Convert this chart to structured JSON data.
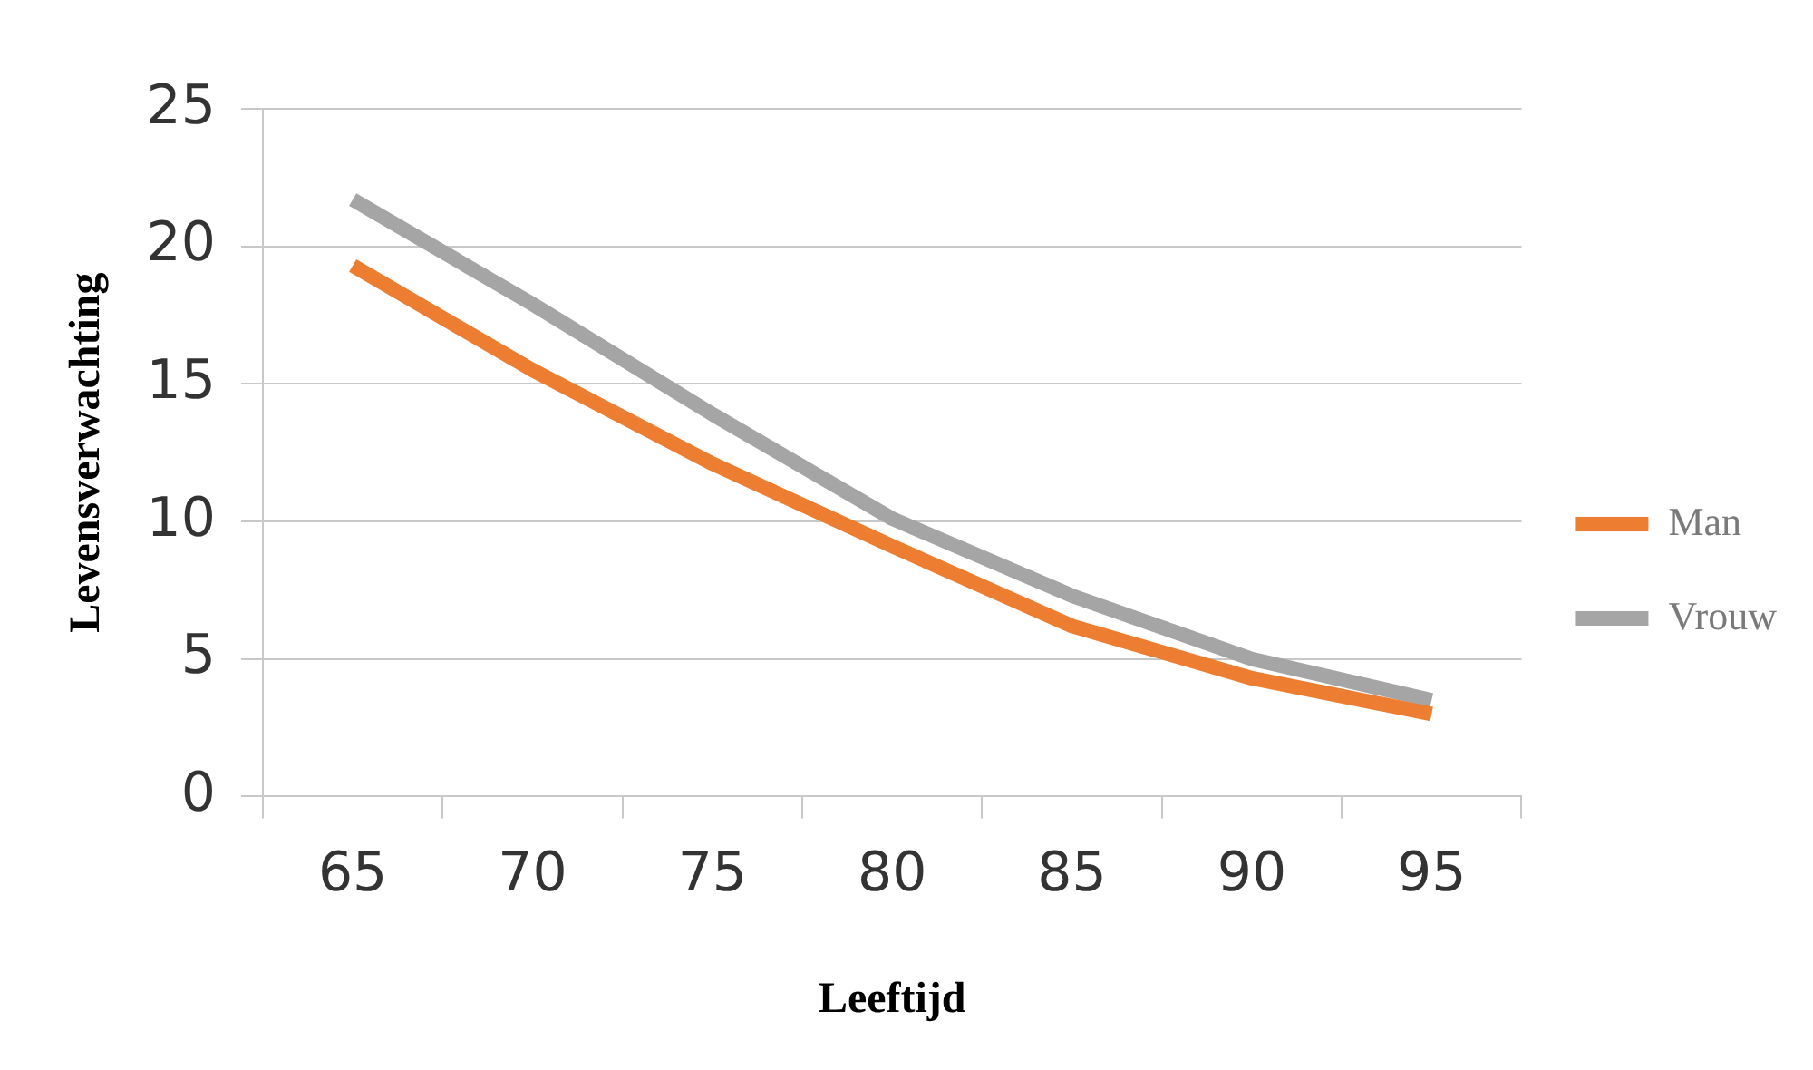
{
  "chart_data": {
    "type": "line",
    "xlabel": "Leeftijd",
    "ylabel": "Levensverwachting",
    "categories": [
      "65",
      "70",
      "75",
      "80",
      "85",
      "90",
      "95"
    ],
    "series": [
      {
        "name": "Man",
        "color": "#ed7d31",
        "values": [
          19.3,
          15.5,
          12.1,
          9.1,
          6.2,
          4.3,
          3.0
        ]
      },
      {
        "name": "Vrouw",
        "color": "#a5a5a5",
        "values": [
          21.7,
          17.9,
          13.9,
          10.1,
          7.3,
          5.0,
          3.5
        ]
      }
    ],
    "ylim": [
      0,
      25
    ],
    "yticks": [
      0,
      5,
      10,
      15,
      20,
      25
    ],
    "grid": "y",
    "legend": "right",
    "marker": "none",
    "line_style": "solid"
  }
}
